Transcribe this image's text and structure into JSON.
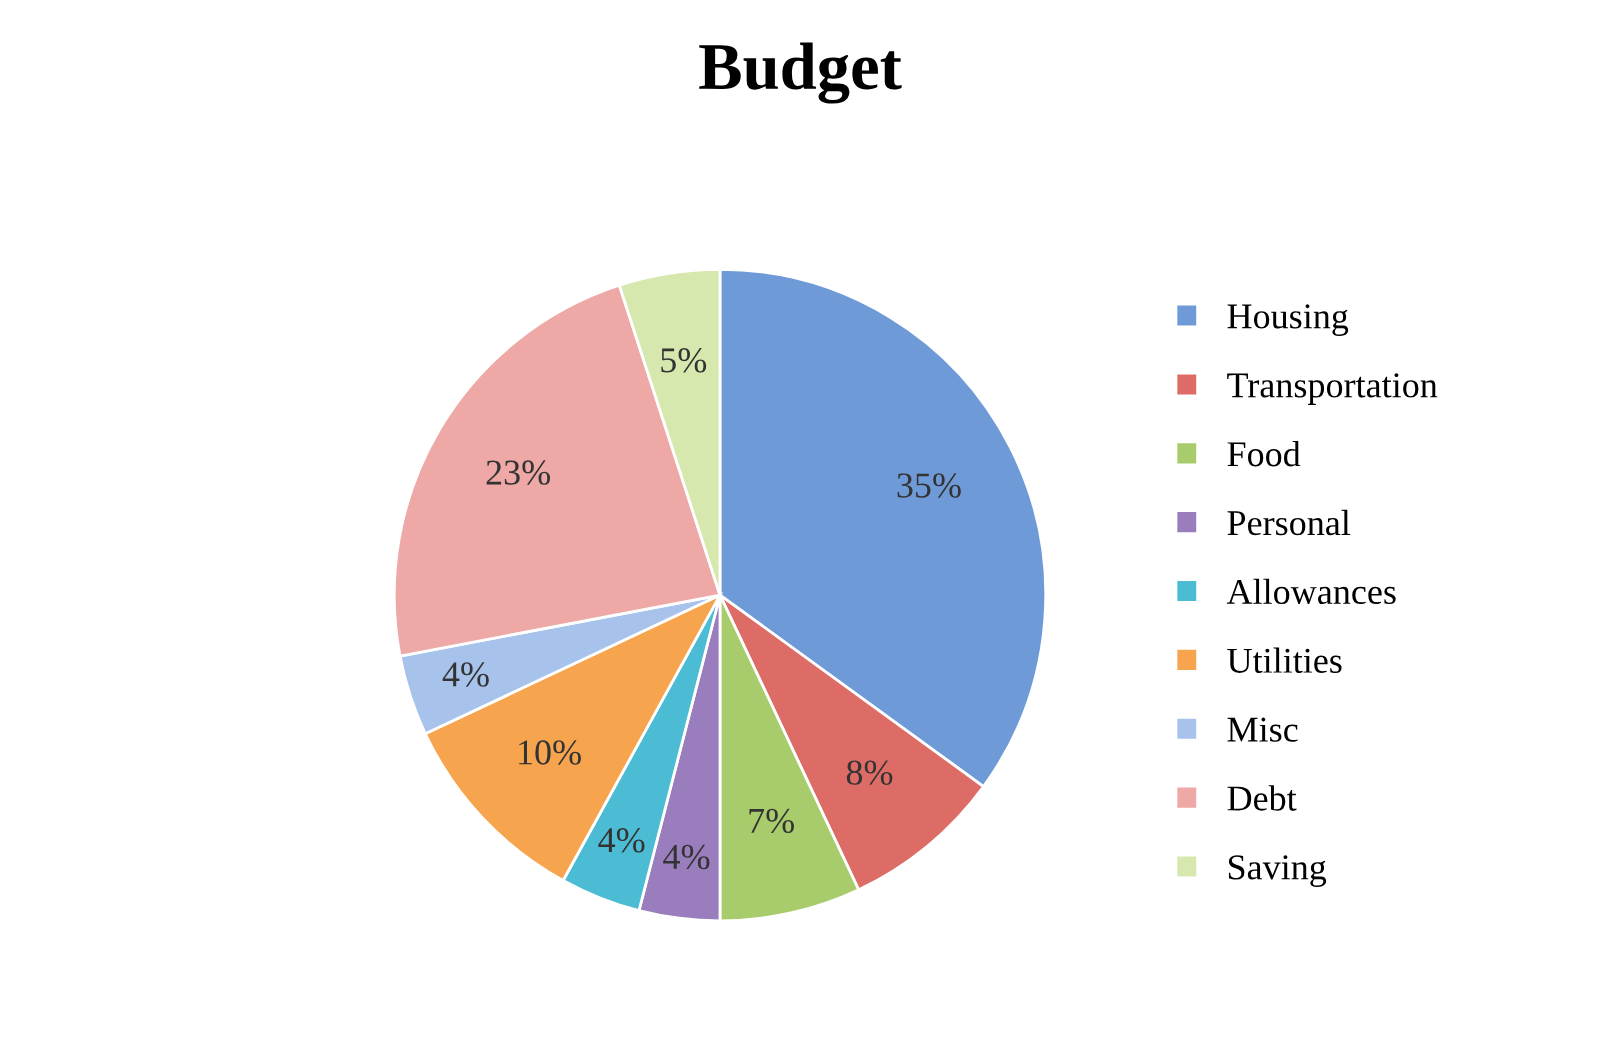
{
  "chart_data": {
    "type": "pie",
    "title": "Budget",
    "categories": [
      "Housing",
      "Transportation",
      "Food",
      "Personal",
      "Allowances",
      "Utilities",
      "Misc",
      "Debt",
      "Saving"
    ],
    "values": [
      35,
      8,
      7,
      4,
      4,
      10,
      4,
      23,
      5
    ],
    "colors": [
      "#6f9ad8",
      "#dd6b66",
      "#a8cc6c",
      "#9a7dbd",
      "#4cbcd4",
      "#f6a54e",
      "#a7c3ec",
      "#eea8a6",
      "#d6e8ae"
    ],
    "value_labels": [
      "35%",
      "8%",
      "7%",
      "4%",
      "4%",
      "10%",
      "4%",
      "23%",
      "5%"
    ],
    "legend": "right"
  }
}
